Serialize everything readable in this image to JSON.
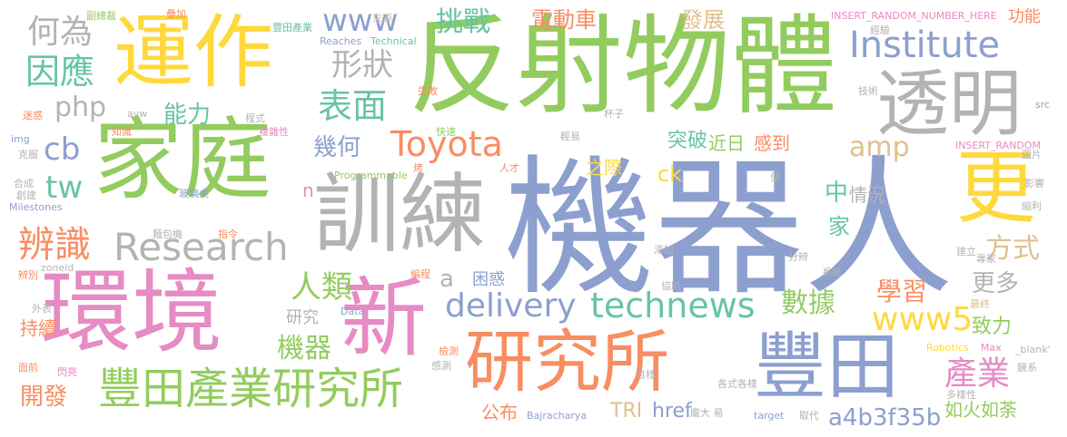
{
  "colors": {
    "green": "#93cc5e",
    "blue": "#8c9fcf",
    "gray": "#b3b3b3",
    "tan": "#e0c08f",
    "pink": "#e68bc3",
    "orange": "#f88d62",
    "teal": "#66c4a4",
    "yellow": "#ffd93c",
    "background": "#ffffff"
  },
  "words": {
    "jiqiren": "機器人",
    "fanshewuti": "反射物體",
    "huanjing": "環境",
    "yunzuo": "運作",
    "jiating": "家庭",
    "xunlian": "訓練",
    "xin": "新",
    "yanjiusuo": "研究所",
    "fengtian": "豐田",
    "toumin": "透明",
    "geng": "更",
    "institute": "Institute",
    "toyota": "Toyota",
    "research": "Research",
    "technews": "technews",
    "delivery": "delivery",
    "www": "www",
    "www5": "www5",
    "fengtianchanye_yjs": "豐田產業研究所",
    "kaifa": "開發",
    "bianshi": "辨識",
    "yinying": "因應",
    "heiwei": "何為",
    "biaomian": "表面",
    "xingzhuang": "形狀",
    "tiaozhan": "挑戰",
    "dianduoche": "電動車",
    "fazhan": "發展",
    "gongneng": "功能",
    "php": "php",
    "nengli": "能力",
    "cb": "cb",
    "tw": "tw",
    "jihe": "幾何",
    "amp": "amp",
    "tupo": "突破",
    "jinri": "近日",
    "gandao": "感到",
    "zhong": "中",
    "qingkuang": "情況",
    "jia": "家",
    "fangshi": "方式",
    "xuexi": "學習",
    "gengduo": "更多",
    "chanye": "產業",
    "renlei": "人類",
    "jiqi": "機器",
    "shuju": "數據",
    "zhili": "致力",
    "kunhuo": "困惑",
    "yanjiu": "研究",
    "chixu": "持續",
    "gongbu": "公布",
    "tri": "TRI",
    "href": "href",
    "hash": "a4b3f35b",
    "ruhuoturu": "如火如荼",
    "ck": "ck",
    "zhiji": "之際",
    "a": "a",
    "n": "n",
    "programmable": "Programmable",
    "shengjiyuan": "副總裁",
    "diejia": "疊加",
    "fengtianchanye": "豐田產業",
    "laiyuan": "來源",
    "insert_random": "INSERT_RANDOM_NUMBER_HERE",
    "insert_random2": "INSERT_RANDOM",
    "jingli": "經驗",
    "reaches": "Reaches",
    "technical": "Technical",
    "shibai": "失敗",
    "beizi": "杯子",
    "jishu": "技術",
    "src": "src",
    "avw": "avw",
    "chengshi": "程式",
    "mishi": "迷惑",
    "fuzaxing": "複雜性",
    "zhishi": "知識",
    "img": "img",
    "kefu": "克服",
    "kuaisu": "快速",
    "qingyi": "輕易",
    "rencai": "人才",
    "tupian": "圖片",
    "hecheng": "合成",
    "chuangjian": "創建",
    "milestones": "Milestones",
    "boli": "玻璃桌",
    "yingxiang": "影響",
    "zhiling": "指令",
    "mianbao": "麵包機",
    "zoneid": "zoneid",
    "bianbie": "辨別",
    "waibiao": "外表",
    "bianchen": "編程",
    "data": "Data",
    "xiezhu": "協助",
    "tianjia": "添加",
    "zhuanjia": "專家",
    "jianli": "建立",
    "fenbian": "分辨",
    "xitong": "系統",
    "zuizhong": "最終",
    "robotics": "Robotics",
    "max": "Max",
    "blank": "_blank'",
    "mianqian": "面前",
    "shanliang": "閃亮",
    "jiance": "檢測",
    "ganying": "感測",
    "mubiao": "目標",
    "bajracharya": "Bajracharya",
    "gezhong": "各式各樣",
    "target": "target",
    "qudai": "取代",
    "duoyangxing": "多樣性",
    "pangda": "龐大 易",
    "jingxi": "鏡系",
    "bian": "便",
    "suofang": "縮利",
    "kao": "烤"
  }
}
